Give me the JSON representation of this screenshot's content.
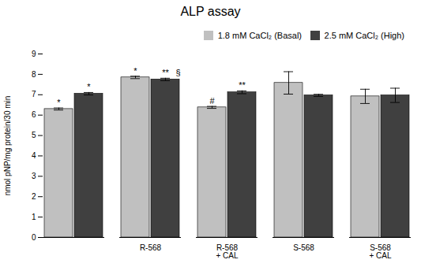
{
  "chart_data": {
    "type": "bar",
    "title": "ALP assay",
    "ylabel": "nmol pNP/mg protein/30 min",
    "categories": [
      null,
      "R-568",
      "R-568\n+ CAL",
      "S-568",
      "S-568\n+ CAL"
    ],
    "series": [
      {
        "name": "1.8 mM CaCl₂ (Basal)",
        "color": "#c0c0c0",
        "values": [
          6.3,
          7.85,
          6.38,
          7.58,
          6.92
        ],
        "errors": [
          0.05,
          0.06,
          0.05,
          0.55,
          0.35
        ],
        "annotations": [
          "*",
          "*",
          "#",
          null,
          null
        ]
      },
      {
        "name": "2.5 mM CaCl₂ (High)",
        "color": "#404040",
        "values": [
          7.05,
          7.75,
          7.12,
          6.97,
          6.97
        ],
        "errors": [
          0.06,
          0.06,
          0.07,
          0.05,
          0.35
        ],
        "annotations": [
          "*",
          "**",
          "**",
          null,
          null
        ]
      }
    ],
    "annotations": [
      {
        "text": "§",
        "category": "R-568",
        "series": "2.5 mM CaCl₂ (High)"
      }
    ],
    "ylim": [
      0,
      9
    ],
    "yticks": [
      0,
      1,
      2,
      3,
      4,
      5,
      6,
      7,
      8,
      9
    ],
    "grid": false,
    "legend": "upper right"
  }
}
